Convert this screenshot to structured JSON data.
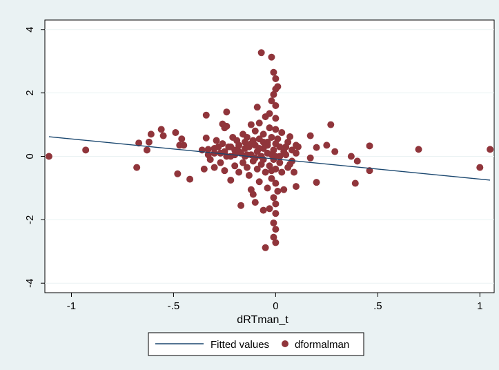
{
  "chart_data": {
    "type": "scatter",
    "xlabel": "dRTman_t",
    "ylabel": "",
    "xlim": [
      -1.13,
      1.07
    ],
    "ylim": [
      -4.3,
      4.3
    ],
    "x_ticks": [
      -1,
      -0.5,
      0,
      0.5,
      1
    ],
    "x_tick_labels": [
      "-1",
      "-.5",
      "0",
      ".5",
      "1"
    ],
    "y_ticks": [
      -4,
      -2,
      0,
      2,
      4
    ],
    "y_tick_labels": [
      "-4",
      "-2",
      "0",
      "2",
      "4"
    ],
    "grid": "horizontal",
    "legend_position": "bottom",
    "series": [
      {
        "name": "Fitted values",
        "type": "line",
        "color": "#1a476f",
        "x": [
          -1.11,
          1.05
        ],
        "y": [
          0.62,
          -0.75
        ]
      },
      {
        "name": "dformalman",
        "type": "scatter",
        "color": "#90353b",
        "points": [
          [
            -1.11,
            0.0
          ],
          [
            -0.93,
            0.2
          ],
          [
            -0.68,
            -0.35
          ],
          [
            -0.67,
            0.42
          ],
          [
            -0.63,
            0.2
          ],
          [
            -0.62,
            0.45
          ],
          [
            -0.61,
            0.7
          ],
          [
            -0.56,
            0.85
          ],
          [
            -0.55,
            0.65
          ],
          [
            -0.49,
            0.75
          ],
          [
            -0.48,
            -0.55
          ],
          [
            -0.47,
            0.35
          ],
          [
            -0.46,
            0.55
          ],
          [
            -0.45,
            0.35
          ],
          [
            -0.42,
            -0.72
          ],
          [
            -0.35,
            -0.4
          ],
          [
            -0.34,
            1.3
          ],
          [
            -0.34,
            0.58
          ],
          [
            -0.33,
            0.22
          ],
          [
            -0.32,
            -0.1
          ],
          [
            -0.3,
            0.25
          ],
          [
            -0.3,
            -0.35
          ],
          [
            -0.29,
            0.5
          ],
          [
            -0.28,
            0.3
          ],
          [
            -0.27,
            0.1
          ],
          [
            -0.27,
            -0.2
          ],
          [
            -0.26,
            1.02
          ],
          [
            -0.26,
            0.4
          ],
          [
            -0.25,
            0.9
          ],
          [
            -0.25,
            -0.45
          ],
          [
            -0.24,
            1.4
          ],
          [
            -0.24,
            0.95
          ],
          [
            -0.24,
            0.0
          ],
          [
            -0.23,
            0.3
          ],
          [
            -0.22,
            -0.75
          ],
          [
            -0.22,
            0.3
          ],
          [
            -0.21,
            0.6
          ],
          [
            -0.2,
            -0.3
          ],
          [
            -0.2,
            0.2
          ],
          [
            -0.19,
            0.5
          ],
          [
            -0.18,
            0.35
          ],
          [
            -0.18,
            -0.5
          ],
          [
            -0.17,
            -1.55
          ],
          [
            -0.17,
            0.1
          ],
          [
            -0.16,
            0.7
          ],
          [
            -0.16,
            -0.2
          ],
          [
            -0.15,
            0.45
          ],
          [
            -0.15,
            0.25
          ],
          [
            -0.14,
            -0.35
          ],
          [
            -0.14,
            0.6
          ],
          [
            -0.13,
            -0.6
          ],
          [
            -0.13,
            0.3
          ],
          [
            -0.12,
            -1.05
          ],
          [
            -0.12,
            1.0
          ],
          [
            -0.12,
            0.05
          ],
          [
            -0.11,
            -1.2
          ],
          [
            -0.11,
            0.5
          ],
          [
            -0.11,
            -0.15
          ],
          [
            -0.1,
            -1.45
          ],
          [
            -0.1,
            0.8
          ],
          [
            -0.1,
            0.35
          ],
          [
            -0.09,
            1.55
          ],
          [
            -0.09,
            -0.4
          ],
          [
            -0.09,
            0.15
          ],
          [
            -0.08,
            1.05
          ],
          [
            -0.08,
            -0.8
          ],
          [
            -0.08,
            0.55
          ],
          [
            -0.07,
            0.0
          ],
          [
            -0.07,
            -0.25
          ],
          [
            -0.07,
            3.27
          ],
          [
            -0.06,
            -1.7
          ],
          [
            -0.06,
            0.25
          ],
          [
            -0.06,
            0.7
          ],
          [
            -0.05,
            1.25
          ],
          [
            -0.05,
            -0.5
          ],
          [
            -0.05,
            -2.88
          ],
          [
            -0.04,
            0.45
          ],
          [
            -0.04,
            -1.0
          ],
          [
            -0.04,
            0.1
          ],
          [
            -0.03,
            1.35
          ],
          [
            -0.03,
            -0.3
          ],
          [
            -0.03,
            -1.65
          ],
          [
            -0.03,
            0.9
          ],
          [
            -0.02,
            1.75
          ],
          [
            -0.02,
            0.6
          ],
          [
            -0.02,
            -0.7
          ],
          [
            -0.01,
            1.95
          ],
          [
            -0.01,
            0.2
          ],
          [
            -0.01,
            -0.1
          ],
          [
            -0.01,
            -1.3
          ],
          [
            -0.02,
            3.13
          ],
          [
            -0.01,
            2.65
          ],
          [
            0.0,
            2.45
          ],
          [
            0.0,
            2.12
          ],
          [
            0.01,
            2.2
          ],
          [
            0.0,
            1.6
          ],
          [
            0.0,
            1.2
          ],
          [
            0.0,
            0.85
          ],
          [
            0.0,
            0.4
          ],
          [
            0.0,
            0.0
          ],
          [
            0.0,
            -0.4
          ],
          [
            0.0,
            -0.85
          ],
          [
            0.0,
            -1.5
          ],
          [
            0.0,
            -1.8
          ],
          [
            -0.01,
            -2.1
          ],
          [
            0.0,
            -2.3
          ],
          [
            -0.01,
            -2.55
          ],
          [
            0.0,
            -2.72
          ],
          [
            0.01,
            -1.1
          ],
          [
            0.01,
            0.55
          ],
          [
            0.02,
            -0.2
          ],
          [
            0.02,
            0.3
          ],
          [
            0.03,
            0.75
          ],
          [
            0.03,
            -0.5
          ],
          [
            0.04,
            0.15
          ],
          [
            0.04,
            -1.05
          ],
          [
            0.05,
            0.05
          ],
          [
            0.06,
            0.45
          ],
          [
            0.06,
            -0.35
          ],
          [
            0.07,
            0.62
          ],
          [
            0.08,
            0.2
          ],
          [
            0.08,
            -0.15
          ],
          [
            0.09,
            -0.5
          ],
          [
            0.1,
            0.35
          ],
          [
            0.1,
            -0.95
          ],
          [
            0.1,
            0.1
          ],
          [
            0.11,
            0.3
          ],
          [
            0.17,
            0.65
          ],
          [
            0.17,
            -0.05
          ],
          [
            0.2,
            0.28
          ],
          [
            0.2,
            -0.82
          ],
          [
            0.25,
            0.35
          ],
          [
            0.27,
            1.0
          ],
          [
            0.29,
            0.15
          ],
          [
            0.37,
            0.0
          ],
          [
            0.39,
            -0.85
          ],
          [
            0.4,
            -0.15
          ],
          [
            0.46,
            0.33
          ],
          [
            0.46,
            -0.45
          ],
          [
            0.7,
            0.22
          ],
          [
            1.0,
            -0.35
          ],
          [
            1.05,
            0.22
          ],
          [
            -0.2,
            0.05
          ],
          [
            -0.15,
            0.0
          ],
          [
            -0.12,
            0.4
          ],
          [
            -0.1,
            -0.05
          ],
          [
            -0.08,
            0.25
          ],
          [
            -0.06,
            -0.1
          ],
          [
            -0.04,
            0.35
          ],
          [
            -0.02,
            0.05
          ],
          [
            -0.02,
            -0.45
          ],
          [
            0.02,
            0.0
          ],
          [
            -0.25,
            0.15
          ],
          [
            -0.22,
            0.0
          ],
          [
            -0.18,
            0.15
          ],
          [
            -0.14,
            0.05
          ],
          [
            -0.06,
            0.45
          ],
          [
            -0.3,
            0.1
          ],
          [
            -0.33,
            0.05
          ],
          [
            -0.36,
            0.2
          ],
          [
            0.05,
            0.3
          ],
          [
            0.07,
            -0.25
          ]
        ]
      }
    ]
  }
}
